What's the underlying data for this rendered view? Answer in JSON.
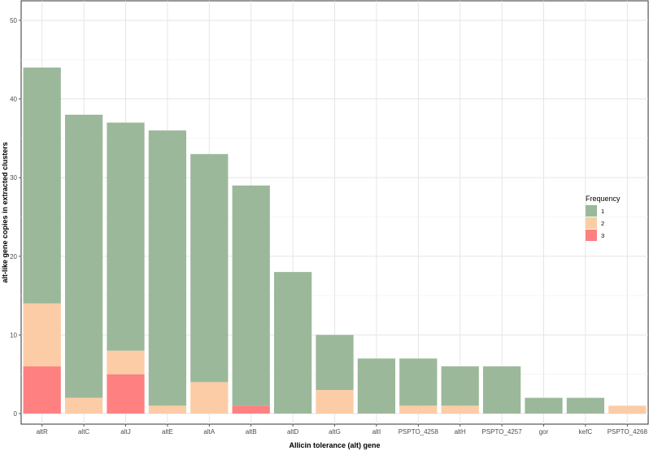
{
  "chart_data": {
    "type": "bar",
    "stacked": true,
    "xlabel": "Allicin tolerance (alt) gene",
    "ylabel": "alt-like gene copies in extracted clusters",
    "ylim": [
      0,
      50
    ],
    "yticks": [
      0,
      10,
      20,
      30,
      40,
      50
    ],
    "grid": true,
    "categories": [
      "altR",
      "altC",
      "altJ",
      "altE",
      "altA",
      "altB",
      "altD",
      "altG",
      "altI",
      "PSPTO_4258",
      "altH",
      "PSPTO_4257",
      "gor",
      "kefC",
      "PSPTO_4268"
    ],
    "series": [
      {
        "name": "3",
        "color": "#ff8080",
        "values": [
          6,
          0,
          5,
          0,
          0,
          1,
          0,
          0,
          0,
          0,
          0,
          0,
          0,
          0,
          0
        ]
      },
      {
        "name": "2",
        "color": "#fccca6",
        "values": [
          8,
          2,
          3,
          1,
          4,
          0,
          0,
          3,
          0,
          1,
          1,
          0,
          0,
          0,
          1
        ]
      },
      {
        "name": "1",
        "color": "#9bb99a",
        "values": [
          30,
          36,
          29,
          35,
          29,
          28,
          18,
          7,
          7,
          6,
          5,
          6,
          2,
          2,
          0
        ]
      }
    ],
    "legend": {
      "title": "Frequency",
      "position": "right",
      "entries": [
        {
          "label": "1",
          "color": "#9bb99a"
        },
        {
          "label": "2",
          "color": "#fccca6"
        },
        {
          "label": "3",
          "color": "#ff8080"
        }
      ]
    }
  }
}
